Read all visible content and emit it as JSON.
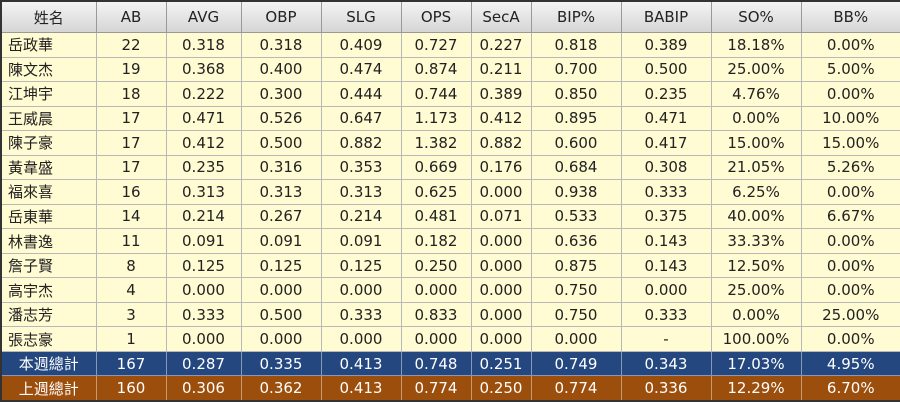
{
  "table": {
    "header": [
      "姓名",
      "AB",
      "AVG",
      "OBP",
      "SLG",
      "OPS",
      "SecA",
      "BIP%",
      "BABIP",
      "SO%",
      "BB%"
    ],
    "rows": [
      [
        "岳政華",
        "22",
        "0.318",
        "0.318",
        "0.409",
        "0.727",
        "0.227",
        "0.818",
        "0.389",
        "18.18%",
        "0.00%"
      ],
      [
        "陳文杰",
        "19",
        "0.368",
        "0.400",
        "0.474",
        "0.874",
        "0.211",
        "0.700",
        "0.500",
        "25.00%",
        "5.00%"
      ],
      [
        "江坤宇",
        "18",
        "0.222",
        "0.300",
        "0.444",
        "0.744",
        "0.389",
        "0.850",
        "0.235",
        "4.76%",
        "0.00%"
      ],
      [
        "王威晨",
        "17",
        "0.471",
        "0.526",
        "0.647",
        "1.173",
        "0.412",
        "0.895",
        "0.471",
        "0.00%",
        "10.00%"
      ],
      [
        "陳子豪",
        "17",
        "0.412",
        "0.500",
        "0.882",
        "1.382",
        "0.882",
        "0.600",
        "0.417",
        "15.00%",
        "15.00%"
      ],
      [
        "黃韋盛",
        "17",
        "0.235",
        "0.316",
        "0.353",
        "0.669",
        "0.176",
        "0.684",
        "0.308",
        "21.05%",
        "5.26%"
      ],
      [
        "福來喜",
        "16",
        "0.313",
        "0.313",
        "0.313",
        "0.625",
        "0.000",
        "0.938",
        "0.333",
        "6.25%",
        "0.00%"
      ],
      [
        "岳東華",
        "14",
        "0.214",
        "0.267",
        "0.214",
        "0.481",
        "0.071",
        "0.533",
        "0.375",
        "40.00%",
        "6.67%"
      ],
      [
        "林書逸",
        "11",
        "0.091",
        "0.091",
        "0.091",
        "0.182",
        "0.000",
        "0.636",
        "0.143",
        "33.33%",
        "0.00%"
      ],
      [
        "詹子賢",
        "8",
        "0.125",
        "0.125",
        "0.125",
        "0.250",
        "0.000",
        "0.875",
        "0.143",
        "12.50%",
        "0.00%"
      ],
      [
        "高宇杰",
        "4",
        "0.000",
        "0.000",
        "0.000",
        "0.000",
        "0.000",
        "0.750",
        "0.000",
        "25.00%",
        "0.00%"
      ],
      [
        "潘志芳",
        "3",
        "0.333",
        "0.500",
        "0.333",
        "0.833",
        "0.000",
        "0.750",
        "0.333",
        "0.00%",
        "25.00%"
      ],
      [
        "張志豪",
        "1",
        "0.000",
        "0.000",
        "0.000",
        "0.000",
        "0.000",
        "0.000",
        "-",
        "100.00%",
        "0.00%"
      ]
    ],
    "totals": [
      [
        "本週總計",
        "167",
        "0.287",
        "0.335",
        "0.413",
        "0.748",
        "0.251",
        "0.749",
        "0.343",
        "17.03%",
        "4.95%"
      ],
      [
        "上週總計",
        "160",
        "0.306",
        "0.362",
        "0.413",
        "0.774",
        "0.250",
        "0.774",
        "0.336",
        "12.29%",
        "6.70%"
      ]
    ]
  }
}
